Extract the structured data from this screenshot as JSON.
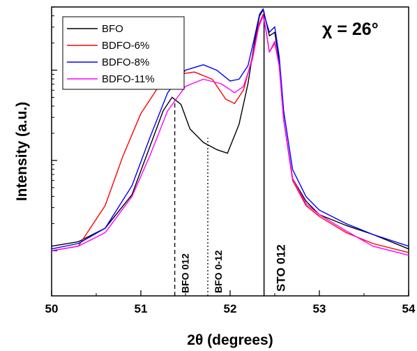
{
  "chart_data": {
    "type": "line",
    "xlabel": "2θ (degrees)",
    "ylabel": "Intensity (a.u.)",
    "xlim": [
      50,
      54
    ],
    "ylim_log": [
      -0.5,
      2.7
    ],
    "y_scale": "log",
    "x_ticks": [
      "50",
      "51",
      "52",
      "53",
      "54"
    ],
    "legend_position": "top-left",
    "annotation_chi": "χ = 26°",
    "reference_lines": [
      {
        "label": "BFO 012",
        "x": 51.38,
        "top": 1.68,
        "style": "dashed"
      },
      {
        "label": "BFO 0-12",
        "x": 51.75,
        "top": 1.25,
        "style": "dotted"
      },
      {
        "label": "STO 012",
        "x": 52.38,
        "top": 2.65,
        "style": "solid"
      }
    ],
    "series": [
      {
        "name": "BFO",
        "color": "#000000",
        "x": [
          50.0,
          50.3,
          50.6,
          50.9,
          51.1,
          51.25,
          51.35,
          51.45,
          51.55,
          51.7,
          51.85,
          51.97,
          52.1,
          52.2,
          52.28,
          52.33,
          52.37,
          52.4,
          52.44,
          52.47,
          52.5,
          52.55,
          52.6,
          52.7,
          52.85,
          53.0,
          53.3,
          53.6,
          54.0
        ],
        "y": [
          0.05,
          0.1,
          0.25,
          0.62,
          1.15,
          1.55,
          1.7,
          1.62,
          1.35,
          1.2,
          1.12,
          1.08,
          1.4,
          1.85,
          2.35,
          2.6,
          2.67,
          2.55,
          2.38,
          2.4,
          2.42,
          2.1,
          1.45,
          0.8,
          0.55,
          0.4,
          0.28,
          0.18,
          0.02
        ]
      },
      {
        "name": "BDFO-6%",
        "color": "#ff0000",
        "x": [
          50.0,
          50.3,
          50.6,
          50.8,
          51.0,
          51.2,
          51.4,
          51.6,
          51.8,
          51.95,
          52.05,
          52.15,
          52.25,
          52.32,
          52.37,
          52.4,
          52.44,
          52.47,
          52.5,
          52.55,
          52.6,
          52.7,
          52.85,
          53.0,
          53.3,
          53.6,
          54.0
        ],
        "y": [
          0.0,
          0.05,
          0.5,
          1.05,
          1.52,
          1.82,
          1.95,
          1.98,
          1.9,
          1.68,
          1.63,
          1.78,
          2.15,
          2.5,
          2.62,
          2.45,
          2.2,
          2.25,
          2.3,
          2.05,
          1.45,
          0.78,
          0.5,
          0.38,
          0.2,
          0.08,
          -0.02
        ]
      },
      {
        "name": "BDFO-8%",
        "color": "#0000ff",
        "x": [
          50.0,
          50.3,
          50.6,
          50.9,
          51.1,
          51.3,
          51.5,
          51.7,
          51.85,
          52.0,
          52.1,
          52.2,
          52.27,
          52.33,
          52.37,
          52.4,
          52.44,
          52.47,
          52.5,
          52.55,
          52.6,
          52.7,
          52.85,
          53.0,
          53.3,
          53.6,
          54.0
        ],
        "y": [
          0.02,
          0.08,
          0.25,
          0.72,
          1.25,
          1.75,
          2.0,
          2.06,
          2.0,
          1.88,
          1.9,
          2.05,
          2.35,
          2.62,
          2.68,
          2.55,
          2.42,
          2.45,
          2.48,
          2.15,
          1.55,
          0.9,
          0.6,
          0.45,
          0.3,
          0.18,
          0.05
        ]
      },
      {
        "name": "BDFO-11%",
        "color": "#ff00ff",
        "x": [
          50.0,
          50.3,
          50.6,
          50.9,
          51.1,
          51.3,
          51.5,
          51.7,
          51.9,
          52.05,
          52.15,
          52.25,
          52.32,
          52.37,
          52.4,
          52.44,
          52.47,
          52.5,
          52.55,
          52.6,
          52.7,
          52.85,
          53.0,
          53.3,
          53.6,
          54.0
        ],
        "y": [
          0.0,
          0.05,
          0.2,
          0.6,
          1.05,
          1.55,
          1.82,
          1.9,
          1.85,
          1.75,
          1.82,
          2.12,
          2.48,
          2.6,
          2.45,
          2.2,
          2.26,
          2.32,
          2.05,
          1.45,
          0.8,
          0.52,
          0.4,
          0.22,
          0.05,
          -0.05
        ]
      }
    ]
  }
}
